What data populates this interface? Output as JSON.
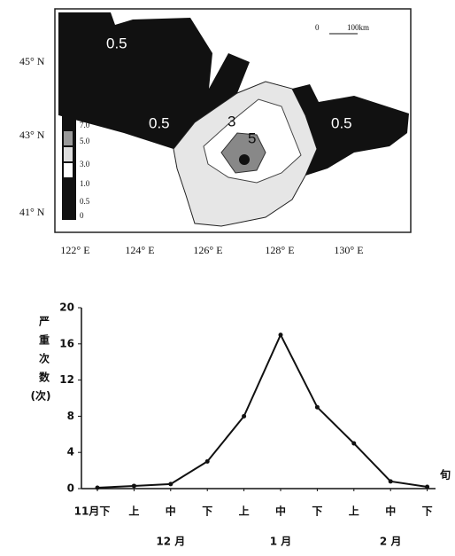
{
  "map": {
    "lat_labels": [
      "45° N",
      "43° N",
      "41° N"
    ],
    "lon_labels": [
      "122° E",
      "124° E",
      "126° E",
      "128° E",
      "130° E"
    ],
    "scale": [
      "0",
      "100km"
    ],
    "legend": [
      "7.0",
      "5.0",
      "3.0",
      "1.0",
      "0.5",
      "0"
    ],
    "contour_labels": [
      "0.5",
      "0.5",
      "0.5",
      "3",
      "5"
    ]
  },
  "chart_data": {
    "type": "line",
    "y_label": [
      "严",
      "重",
      "次",
      "数",
      "(次)"
    ],
    "x_label": "旬",
    "categories": [
      "11月下",
      "上",
      "中",
      "下",
      "上",
      "中",
      "下",
      "上",
      "中",
      "下"
    ],
    "month_labels": [
      "12 月",
      "1 月",
      "2 月"
    ],
    "values": [
      0.1,
      0.3,
      0.5,
      3,
      8,
      17,
      9,
      5,
      0.8,
      0.2
    ],
    "color": "#111",
    "ylim": [
      0,
      20
    ],
    "yticks": [
      0,
      4,
      8,
      12,
      16,
      20
    ]
  }
}
